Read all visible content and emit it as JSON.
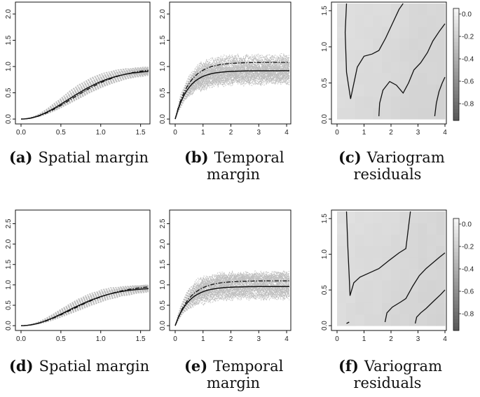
{
  "chart_data": [
    {
      "id": "a",
      "type": "line",
      "caption": {
        "letter": "(a)",
        "lines": [
          "Spatial margin"
        ]
      },
      "xlim": [
        0,
        1.6
      ],
      "ylim": [
        0,
        2.2
      ],
      "xticks": [
        "0.0",
        "0.5",
        "1.0",
        "1.5"
      ],
      "yticks": [
        "0.0",
        "0.5",
        "1.0",
        "1.5",
        "2.0"
      ],
      "model": {
        "kind": "spatial",
        "sill": 0.93,
        "range": 1.05
      },
      "empirical": {
        "sill": 0.97
      },
      "simulations": {
        "count": 60,
        "spread": 0.07
      }
    },
    {
      "id": "b",
      "type": "line",
      "caption": {
        "letter": "(b)",
        "lines": [
          "Temporal",
          "margin"
        ]
      },
      "xlim": [
        0,
        4.1
      ],
      "ylim": [
        0,
        2.2
      ],
      "xticks": [
        "0",
        "1",
        "2",
        "3",
        "4"
      ],
      "yticks": [
        "0.0",
        "0.5",
        "1.0",
        "1.5",
        "2.0"
      ],
      "model": {
        "kind": "temporal",
        "sill": 0.92,
        "range": 0.85
      },
      "empirical": {
        "sill": 1.08
      },
      "simulations": {
        "count": 70,
        "spread": 0.22
      }
    },
    {
      "id": "c",
      "type": "heatmap",
      "caption": {
        "letter": "(c)",
        "lines": [
          "Variogram",
          "residuals"
        ]
      },
      "xlim": [
        0,
        4
      ],
      "ylim": [
        0,
        1.6
      ],
      "xticks": [
        "0",
        "1",
        "2",
        "3",
        "4"
      ],
      "yticks": [
        "0.0",
        "0.5",
        "1.0",
        "1.5"
      ],
      "colorbar": {
        "ticks": [
          "0.0",
          "-0.2",
          "-0.4",
          "-0.6",
          "-0.8"
        ],
        "min": -0.95,
        "max": 0.05
      },
      "contours": [
        [
          [
            0.35,
            1.6
          ],
          [
            0.3,
            1.2
          ],
          [
            0.35,
            0.65
          ],
          [
            0.5,
            0.28
          ],
          [
            0.75,
            0.72
          ],
          [
            1.0,
            0.87
          ],
          [
            1.3,
            0.9
          ],
          [
            1.55,
            0.95
          ],
          [
            1.8,
            1.12
          ],
          [
            2.05,
            1.32
          ],
          [
            2.3,
            1.52
          ],
          [
            2.45,
            1.6
          ]
        ],
        [
          [
            1.55,
            0.04
          ],
          [
            1.58,
            0.22
          ],
          [
            1.7,
            0.4
          ],
          [
            1.95,
            0.52
          ],
          [
            2.2,
            0.47
          ],
          [
            2.45,
            0.36
          ],
          [
            2.65,
            0.5
          ],
          [
            2.85,
            0.68
          ],
          [
            3.1,
            0.78
          ],
          [
            3.35,
            0.92
          ],
          [
            3.55,
            1.08
          ],
          [
            3.8,
            1.22
          ],
          [
            4.0,
            1.32
          ]
        ],
        [
          [
            3.62,
            0.04
          ],
          [
            3.68,
            0.22
          ],
          [
            3.78,
            0.38
          ],
          [
            3.9,
            0.5
          ],
          [
            4.0,
            0.58
          ]
        ]
      ]
    },
    {
      "id": "d",
      "type": "line",
      "caption": {
        "letter": "(d)",
        "lines": [
          "Spatial margin"
        ]
      },
      "xlim": [
        0,
        1.6
      ],
      "ylim": [
        0,
        2.8
      ],
      "xticks": [
        "0.0",
        "0.5",
        "1.0",
        "1.5"
      ],
      "yticks": [
        "0.0",
        "0.5",
        "1.0",
        "1.5",
        "2.0",
        "2.5"
      ],
      "model": {
        "kind": "spatial",
        "sill": 0.93,
        "range": 1.05
      },
      "empirical": {
        "sill": 0.99
      },
      "simulations": {
        "count": 60,
        "spread": 0.08
      }
    },
    {
      "id": "e",
      "type": "line",
      "caption": {
        "letter": "(e)",
        "lines": [
          "Temporal",
          "margin"
        ]
      },
      "xlim": [
        0,
        4.1
      ],
      "ylim": [
        0,
        2.8
      ],
      "xticks": [
        "0",
        "1",
        "2",
        "3",
        "4"
      ],
      "yticks": [
        "0.0",
        "0.5",
        "1.0",
        "1.5",
        "2.0",
        "2.5"
      ],
      "model": {
        "kind": "temporal",
        "sill": 0.96,
        "range": 0.9
      },
      "empirical": {
        "sill": 1.1
      },
      "simulations": {
        "count": 70,
        "spread": 0.25
      }
    },
    {
      "id": "f",
      "type": "heatmap",
      "caption": {
        "letter": "(f)",
        "lines": [
          "Variogram",
          "residuals"
        ]
      },
      "xlim": [
        0,
        4
      ],
      "ylim": [
        0,
        1.6
      ],
      "xticks": [
        "0",
        "1",
        "2",
        "3",
        "4"
      ],
      "yticks": [
        "0.0",
        "0.5",
        "1.0",
        "1.5"
      ],
      "colorbar": {
        "ticks": [
          "0.0",
          "-0.2",
          "-0.4",
          "-0.6",
          "-0.8"
        ],
        "min": -0.95,
        "max": 0.05
      },
      "contours": [
        [
          [
            0.35,
            1.6
          ],
          [
            0.4,
            1.1
          ],
          [
            0.45,
            0.7
          ],
          [
            0.48,
            0.42
          ],
          [
            0.62,
            0.6
          ],
          [
            0.85,
            0.68
          ],
          [
            1.2,
            0.74
          ],
          [
            1.55,
            0.8
          ],
          [
            1.95,
            0.92
          ],
          [
            2.3,
            1.02
          ],
          [
            2.55,
            1.08
          ],
          [
            2.72,
            1.6
          ]
        ],
        [
          [
            1.78,
            0.05
          ],
          [
            1.85,
            0.18
          ],
          [
            2.05,
            0.26
          ],
          [
            2.35,
            0.33
          ],
          [
            2.55,
            0.38
          ],
          [
            2.8,
            0.55
          ],
          [
            3.05,
            0.7
          ],
          [
            3.3,
            0.8
          ],
          [
            3.55,
            0.88
          ],
          [
            3.8,
            0.96
          ],
          [
            4.0,
            1.02
          ]
        ],
        [
          [
            2.9,
            0.03
          ],
          [
            2.95,
            0.12
          ],
          [
            3.1,
            0.18
          ],
          [
            3.3,
            0.24
          ],
          [
            3.6,
            0.35
          ],
          [
            3.85,
            0.44
          ],
          [
            4.0,
            0.5
          ]
        ],
        [
          [
            0.35,
            0.03
          ],
          [
            0.45,
            0.05
          ]
        ]
      ]
    }
  ]
}
